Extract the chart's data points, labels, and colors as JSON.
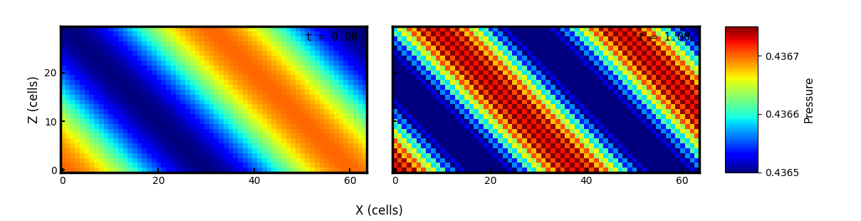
{
  "nx": 64,
  "nz": 30,
  "p_mean": 0.4366,
  "p_amp_init": 0.0001,
  "p_amp_final": 0.00015,
  "noise_amp_final": 2.5e-05,
  "period_init": 60.0,
  "period_final": 38.0,
  "vmin": 0.4365,
  "vmax": 0.43675,
  "cmap": "jet",
  "title_left": "t = 0.00",
  "title_right": "t = 1.00",
  "xlabel": "X (cells)",
  "ylabel": "Z (cells)",
  "cbar_label": "Pressure",
  "cbar_ticks": [
    0.4365,
    0.4366,
    0.4367
  ],
  "figsize": [
    12.09,
    3.1
  ],
  "dpi": 100
}
